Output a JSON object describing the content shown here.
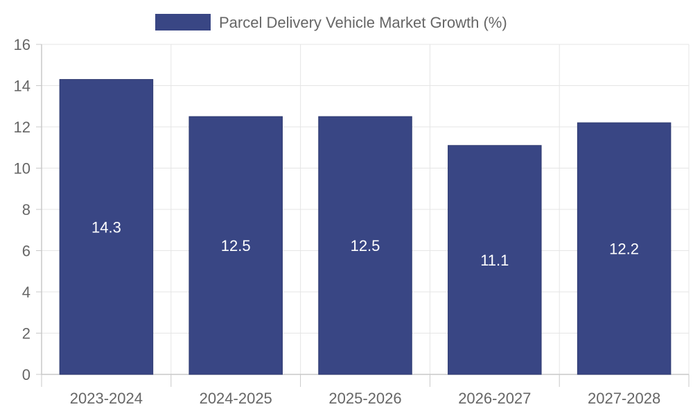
{
  "chart_data": {
    "type": "bar",
    "categories": [
      "2023-2024",
      "2024-2025",
      "2025-2026",
      "2026-2027",
      "2027-2028"
    ],
    "series": [
      {
        "name": "Parcel Delivery Vehicle Market Growth (%)",
        "values": [
          14.3,
          12.5,
          12.5,
          11.1,
          12.2
        ],
        "color": "#394684"
      }
    ],
    "data_labels": [
      "14.3",
      "12.5",
      "12.5",
      "11.1",
      "12.2"
    ],
    "ylim": [
      0,
      16
    ],
    "yticks": [
      "0",
      "2",
      "4",
      "6",
      "8",
      "10",
      "12",
      "14",
      "16"
    ],
    "grid": true,
    "legend_position": "top-center",
    "title": "",
    "xlabel": "",
    "ylabel": ""
  }
}
